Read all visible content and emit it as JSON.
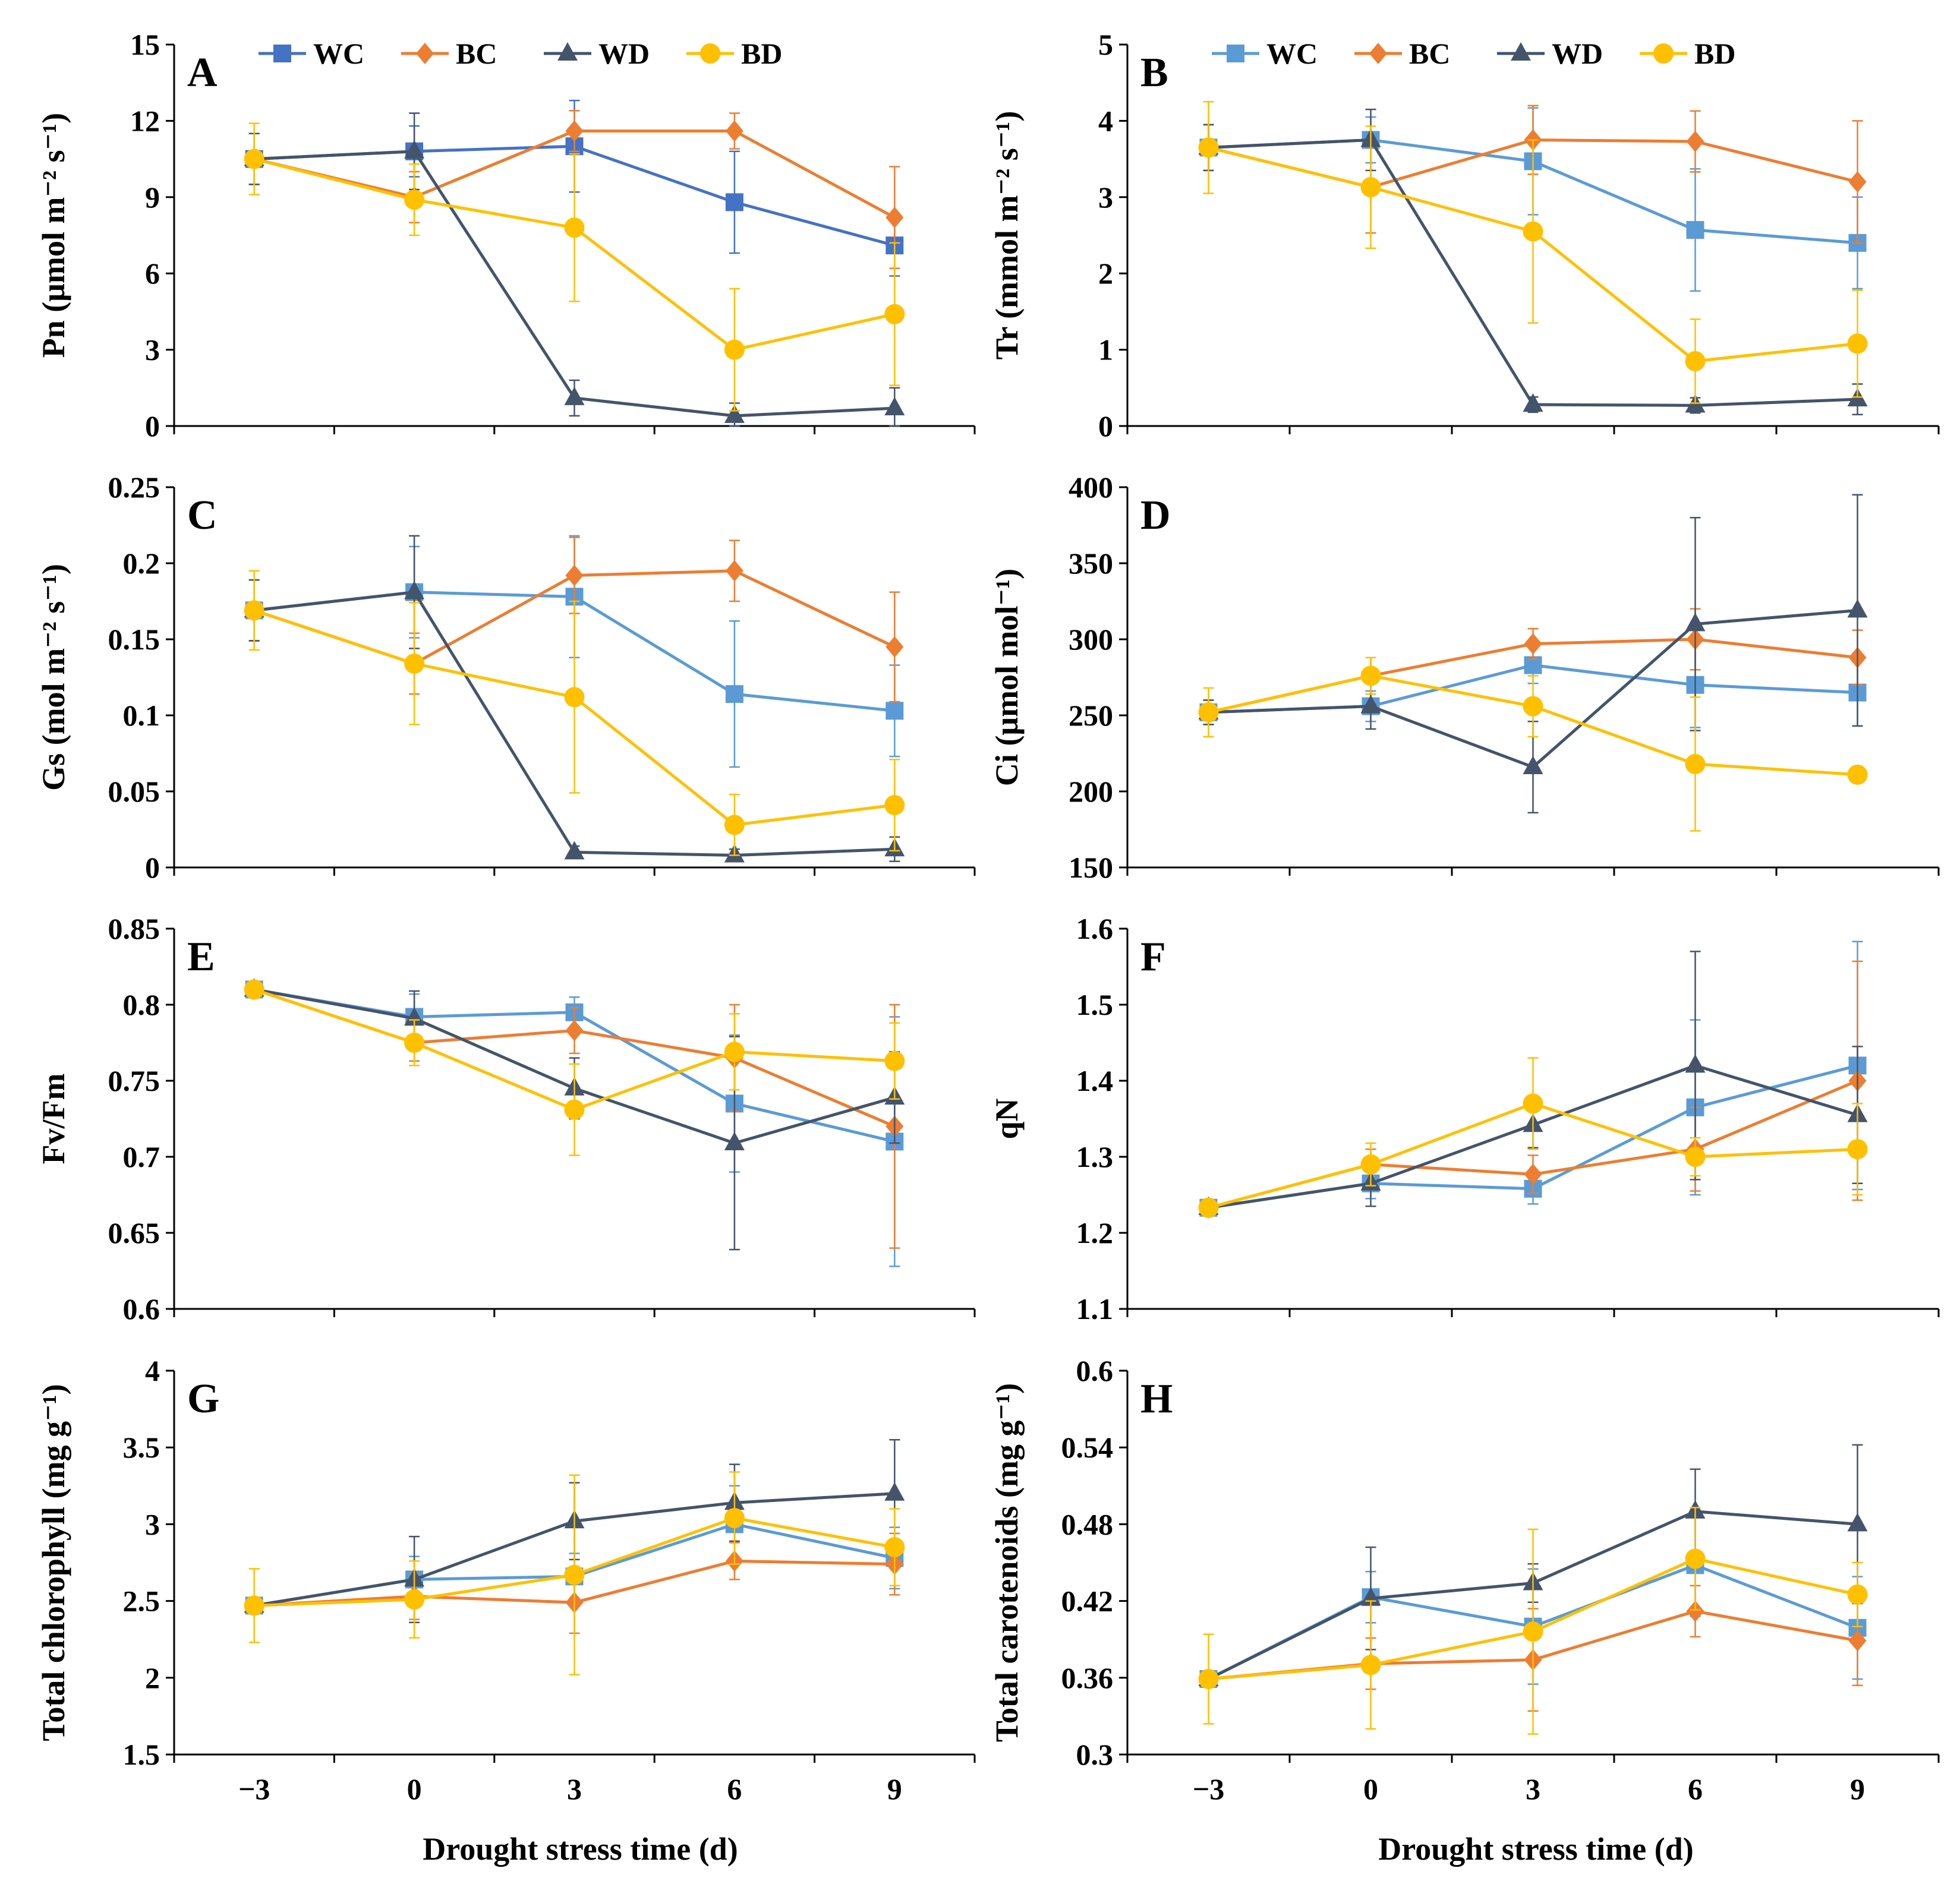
{
  "figure": {
    "x_axis_title": "Drought stress time (d)",
    "series_names": [
      "WC",
      "BC",
      "WD",
      "BD"
    ]
  },
  "chart_data": [
    {
      "type": "line",
      "panel": "A",
      "ylabel": "Pn (μmol m⁻² s⁻¹)",
      "ylim": [
        0,
        15
      ],
      "yticks": [
        0,
        3,
        6,
        9,
        12,
        15
      ],
      "ytick_labels": [
        "0",
        "3",
        "6",
        "9",
        "12",
        "15"
      ],
      "x": [
        -3,
        0,
        3,
        6,
        9
      ],
      "xtick_labels": [],
      "show_legend": true,
      "colors": {
        "WC": "#4472c4",
        "BC": "#ed7d31",
        "WD": "#44546a",
        "BD": "#ffc000"
      },
      "series": [
        {
          "name": "WC",
          "values": [
            10.5,
            10.8,
            11.0,
            8.8,
            7.1
          ],
          "err": [
            1.0,
            1.0,
            1.8,
            2.0,
            1.2
          ]
        },
        {
          "name": "BC",
          "values": [
            10.5,
            9.0,
            11.6,
            11.6,
            8.2
          ],
          "err": [
            1.0,
            1.0,
            0.8,
            0.7,
            2.0
          ]
        },
        {
          "name": "WD",
          "values": [
            10.5,
            10.8,
            1.1,
            0.4,
            0.7
          ],
          "err": [
            1.0,
            1.5,
            0.7,
            0.5,
            0.8
          ]
        },
        {
          "name": "BD",
          "values": [
            10.5,
            8.9,
            7.8,
            3.0,
            4.4
          ],
          "err": [
            1.4,
            1.4,
            2.9,
            2.4,
            2.8
          ]
        }
      ]
    },
    {
      "type": "line",
      "panel": "B",
      "ylabel": "Tr (mmol m⁻² s⁻¹)",
      "ylim": [
        0,
        5
      ],
      "yticks": [
        0,
        1,
        2,
        3,
        4,
        5
      ],
      "ytick_labels": [
        "0",
        "1",
        "2",
        "3",
        "4",
        "5"
      ],
      "x": [
        -3,
        0,
        3,
        6,
        9
      ],
      "xtick_labels": [],
      "show_legend": true,
      "colors": {
        "WC": "#5b9bd5",
        "BC": "#ed7d31",
        "WD": "#44546a",
        "BD": "#ffc000"
      },
      "series": [
        {
          "name": "WC",
          "values": [
            3.65,
            3.75,
            3.47,
            2.57,
            2.4
          ],
          "err": [
            0.3,
            0.3,
            0.7,
            0.8,
            0.6
          ]
        },
        {
          "name": "BC",
          "values": [
            3.65,
            3.13,
            3.75,
            3.73,
            3.2
          ],
          "err": [
            0.3,
            0.6,
            0.45,
            0.4,
            0.8
          ]
        },
        {
          "name": "WD",
          "values": [
            3.65,
            3.75,
            0.28,
            0.27,
            0.35
          ],
          "err": [
            0.3,
            0.4,
            0.1,
            0.1,
            0.2
          ]
        },
        {
          "name": "BD",
          "values": [
            3.65,
            3.13,
            2.55,
            0.85,
            1.08
          ],
          "err": [
            0.6,
            0.8,
            1.2,
            0.55,
            0.7
          ]
        }
      ]
    },
    {
      "type": "line",
      "panel": "C",
      "ylabel": "Gs (mol m⁻² s⁻¹)",
      "ylim": [
        0,
        0.25
      ],
      "yticks": [
        0,
        0.05,
        0.1,
        0.15,
        0.2,
        0.25
      ],
      "ytick_labels": [
        "0",
        "0.05",
        "0.1",
        "0.15",
        "0.2",
        "0.25"
      ],
      "x": [
        -3,
        0,
        3,
        6,
        9
      ],
      "xtick_labels": [],
      "show_legend": false,
      "colors": {
        "WC": "#5b9bd5",
        "BC": "#ed7d31",
        "WD": "#44546a",
        "BD": "#ffc000"
      },
      "series": [
        {
          "name": "WC",
          "values": [
            0.169,
            0.181,
            0.178,
            0.114,
            0.103
          ],
          "err": [
            0.02,
            0.03,
            0.04,
            0.048,
            0.03
          ]
        },
        {
          "name": "BC",
          "values": [
            0.169,
            0.134,
            0.192,
            0.195,
            0.145
          ],
          "err": [
            0.02,
            0.02,
            0.025,
            0.02,
            0.036
          ]
        },
        {
          "name": "WD",
          "values": [
            0.169,
            0.181,
            0.01,
            0.008,
            0.012
          ],
          "err": [
            0.02,
            0.037,
            0.004,
            0.004,
            0.008
          ]
        },
        {
          "name": "BD",
          "values": [
            0.169,
            0.134,
            0.112,
            0.028,
            0.041
          ],
          "err": [
            0.026,
            0.04,
            0.063,
            0.02,
            0.03
          ]
        }
      ]
    },
    {
      "type": "line",
      "panel": "D",
      "ylabel": "Ci (μmol mol⁻¹)",
      "ylim": [
        150,
        400
      ],
      "yticks": [
        150,
        200,
        250,
        300,
        350,
        400
      ],
      "ytick_labels": [
        "150",
        "200",
        "250",
        "300",
        "350",
        "400"
      ],
      "x": [
        -3,
        0,
        3,
        6,
        9
      ],
      "xtick_labels": [],
      "show_legend": false,
      "colors": {
        "WC": "#5b9bd5",
        "BC": "#ed7d31",
        "WD": "#44546a",
        "BD": "#ffc000"
      },
      "series": [
        {
          "name": "WC",
          "values": [
            252,
            256,
            283,
            270,
            265
          ],
          "err": [
            8,
            10,
            12,
            28,
            22
          ]
        },
        {
          "name": "BC",
          "values": [
            252,
            276,
            297,
            300,
            288
          ],
          "err": [
            8,
            12,
            10,
            20,
            18
          ]
        },
        {
          "name": "WD",
          "values": [
            252,
            256,
            216,
            310,
            319
          ],
          "err": [
            8,
            15,
            30,
            70,
            76
          ]
        },
        {
          "name": "BD",
          "values": [
            252,
            276,
            256,
            218,
            211
          ],
          "err": [
            16,
            12,
            20,
            44,
            3
          ]
        }
      ]
    },
    {
      "type": "line",
      "panel": "E",
      "ylabel": "Fv/Fm",
      "ylim": [
        0.6,
        0.85
      ],
      "yticks": [
        0.6,
        0.65,
        0.7,
        0.75,
        0.8,
        0.85
      ],
      "ytick_labels": [
        "0.6",
        "0.65",
        "0.7",
        "0.75",
        "0.8",
        "0.85"
      ],
      "x": [
        -3,
        0,
        3,
        6,
        9
      ],
      "xtick_labels": [],
      "show_legend": false,
      "colors": {
        "WC": "#5b9bd5",
        "BC": "#ed7d31",
        "WD": "#44546a",
        "BD": "#ffc000"
      },
      "series": [
        {
          "name": "WC",
          "values": [
            0.81,
            0.792,
            0.795,
            0.735,
            0.71
          ],
          "err": [
            0.005,
            0.015,
            0.01,
            0.045,
            0.082
          ]
        },
        {
          "name": "BC",
          "values": [
            0.81,
            0.775,
            0.783,
            0.765,
            0.72
          ],
          "err": [
            0.005,
            0.012,
            0.015,
            0.035,
            0.08
          ]
        },
        {
          "name": "WD",
          "values": [
            0.81,
            0.791,
            0.745,
            0.709,
            0.739
          ],
          "err": [
            0.005,
            0.018,
            0.02,
            0.07,
            0.03
          ]
        },
        {
          "name": "BD",
          "values": [
            0.81,
            0.775,
            0.731,
            0.769,
            0.763
          ],
          "err": [
            0.005,
            0.015,
            0.03,
            0.025,
            0.025
          ]
        }
      ]
    },
    {
      "type": "line",
      "panel": "F",
      "ylabel": "qN",
      "ylim": [
        1.1,
        1.6
      ],
      "yticks": [
        1.1,
        1.2,
        1.3,
        1.4,
        1.5,
        1.6
      ],
      "ytick_labels": [
        "1.1",
        "1.2",
        "1.3",
        "1.4",
        "1.5",
        "1.6"
      ],
      "x": [
        -3,
        0,
        3,
        6,
        9
      ],
      "xtick_labels": [],
      "show_legend": false,
      "colors": {
        "WC": "#5b9bd5",
        "BC": "#ed7d31",
        "WD": "#44546a",
        "BD": "#ffc000"
      },
      "series": [
        {
          "name": "WC",
          "values": [
            1.233,
            1.265,
            1.258,
            1.365,
            1.42
          ],
          "err": [
            0.005,
            0.02,
            0.02,
            0.115,
            0.163
          ]
        },
        {
          "name": "BC",
          "values": [
            1.233,
            1.29,
            1.277,
            1.31,
            1.4
          ],
          "err": [
            0.005,
            0.02,
            0.025,
            0.055,
            0.157
          ]
        },
        {
          "name": "WD",
          "values": [
            1.233,
            1.265,
            1.342,
            1.42,
            1.355
          ],
          "err": [
            0.005,
            0.03,
            0.03,
            0.15,
            0.09
          ]
        },
        {
          "name": "BD",
          "values": [
            1.233,
            1.29,
            1.37,
            1.3,
            1.31
          ],
          "err": [
            0.005,
            0.028,
            0.06,
            0.025,
            0.06
          ]
        }
      ]
    },
    {
      "type": "line",
      "panel": "G",
      "ylabel": "Total chlorophyll (mg g⁻¹)",
      "ylim": [
        1.5,
        4
      ],
      "yticks": [
        1.5,
        2,
        2.5,
        3,
        3.5,
        4
      ],
      "ytick_labels": [
        "1.5",
        "2",
        "2.5",
        "3",
        "3.5",
        "4"
      ],
      "x": [
        -3,
        0,
        3,
        6,
        9
      ],
      "xtick_labels": [
        "−3",
        "0",
        "3",
        "6",
        "9"
      ],
      "show_legend": false,
      "colors": {
        "WC": "#5b9bd5",
        "BC": "#ed7d31",
        "WD": "#44546a",
        "BD": "#ffc000"
      },
      "series": [
        {
          "name": "WC",
          "values": [
            2.47,
            2.64,
            2.66,
            3.0,
            2.78
          ],
          "err": [
            0.03,
            0.15,
            0.15,
            0.25,
            0.2
          ]
        },
        {
          "name": "BC",
          "values": [
            2.47,
            2.53,
            2.49,
            2.76,
            2.74
          ],
          "err": [
            0.03,
            0.15,
            0.2,
            0.12,
            0.2
          ]
        },
        {
          "name": "WD",
          "values": [
            2.47,
            2.64,
            3.02,
            3.14,
            3.2
          ],
          "err": [
            0.03,
            0.28,
            0.25,
            0.25,
            0.35
          ]
        },
        {
          "name": "BD",
          "values": [
            2.47,
            2.51,
            2.67,
            3.04,
            2.85
          ],
          "err": [
            0.24,
            0.25,
            0.65,
            0.3,
            0.25
          ]
        }
      ]
    },
    {
      "type": "line",
      "panel": "H",
      "ylabel": "Total carotenoids (mg g⁻¹)",
      "ylim": [
        0.3,
        0.6
      ],
      "yticks": [
        0.3,
        0.36,
        0.42,
        0.48,
        0.54,
        0.6
      ],
      "ytick_labels": [
        "0.3",
        "0.36",
        "0.42",
        "0.48",
        "0.54",
        "0.6"
      ],
      "x": [
        -3,
        0,
        3,
        6,
        9
      ],
      "xtick_labels": [
        "−3",
        "0",
        "3",
        "6",
        "9"
      ],
      "show_legend": false,
      "colors": {
        "WC": "#5b9bd5",
        "BC": "#ed7d31",
        "WD": "#44546a",
        "BD": "#ffc000"
      },
      "series": [
        {
          "name": "WC",
          "values": [
            0.359,
            0.423,
            0.4,
            0.448,
            0.399
          ],
          "err": [
            0.004,
            0.02,
            0.045,
            0.04,
            0.04
          ]
        },
        {
          "name": "BC",
          "values": [
            0.359,
            0.371,
            0.374,
            0.412,
            0.389
          ],
          "err": [
            0.004,
            0.02,
            0.04,
            0.02,
            0.035
          ]
        },
        {
          "name": "WD",
          "values": [
            0.359,
            0.422,
            0.434,
            0.49,
            0.48
          ],
          "err": [
            0.004,
            0.04,
            0.015,
            0.033,
            0.062
          ]
        },
        {
          "name": "BD",
          "values": [
            0.359,
            0.37,
            0.396,
            0.453,
            0.425
          ],
          "err": [
            0.035,
            0.05,
            0.08,
            0.04,
            0.025
          ]
        }
      ]
    }
  ]
}
